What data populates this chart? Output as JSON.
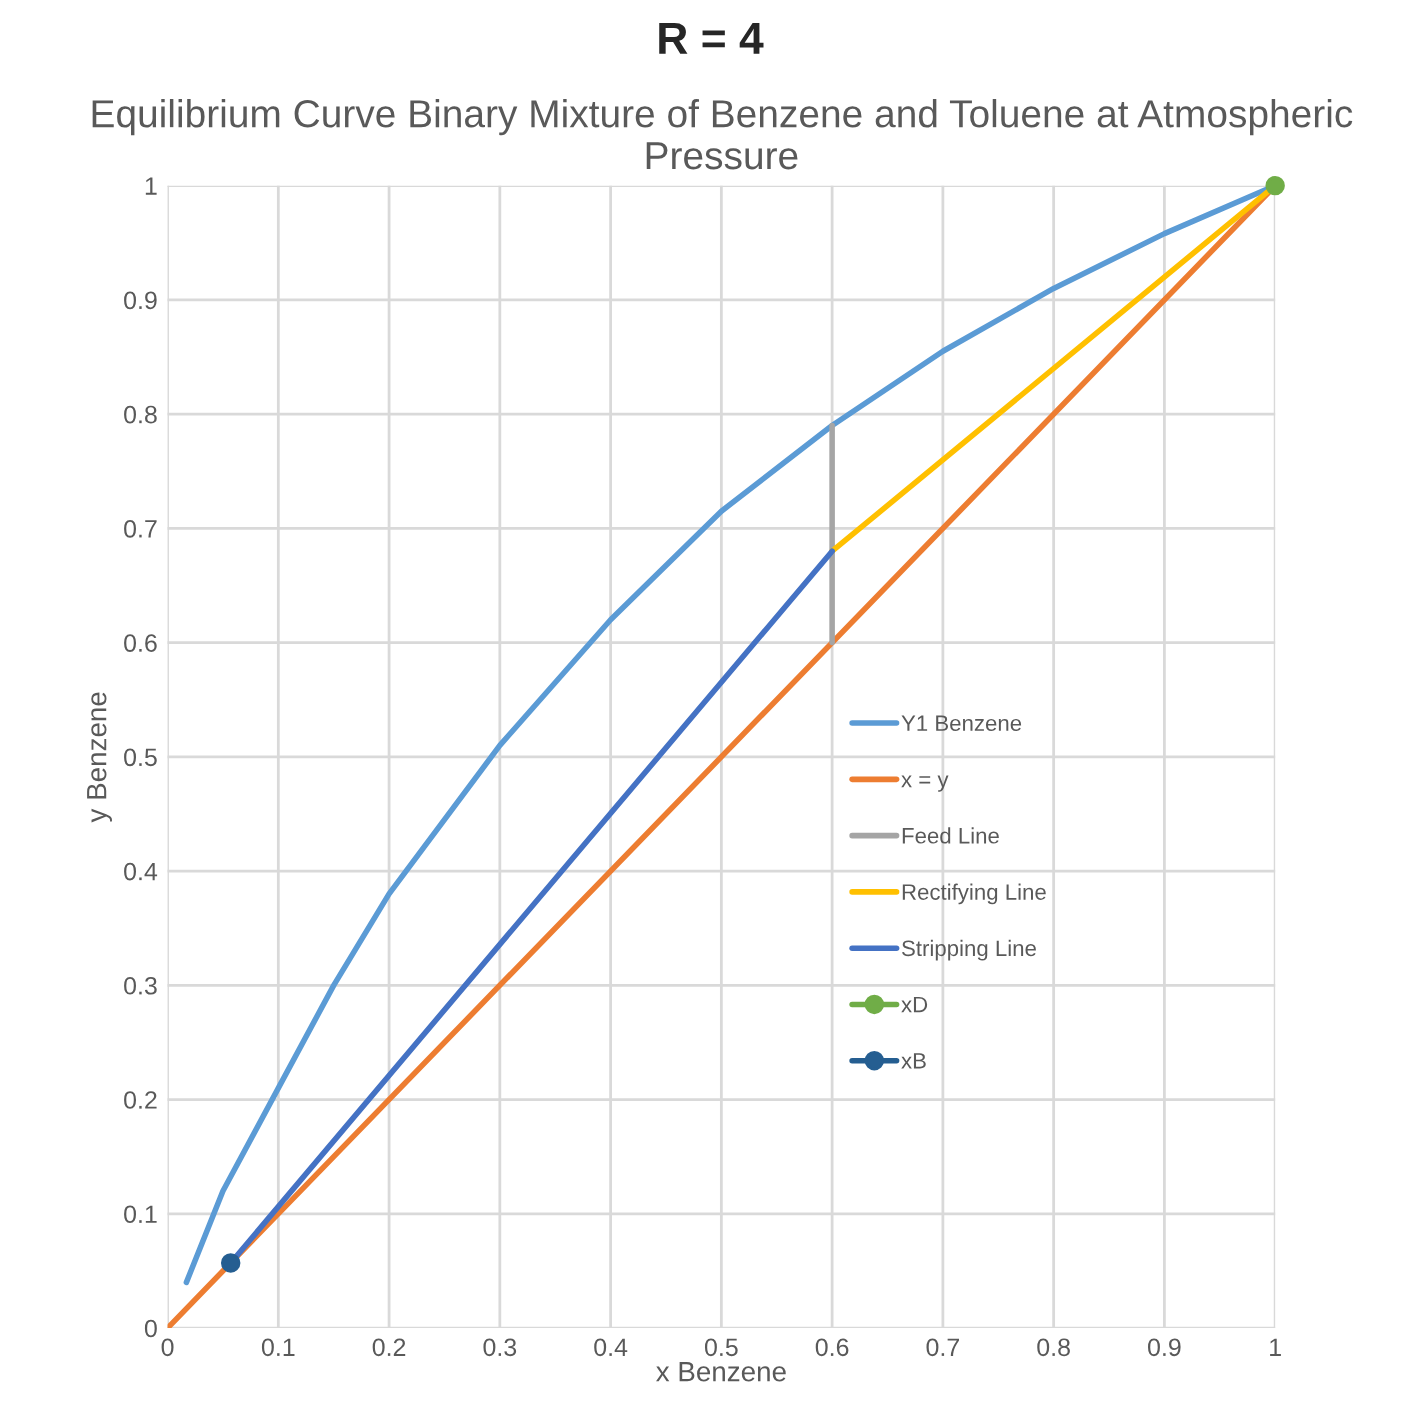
{
  "chart_data": {
    "type": "line",
    "title": "Equilibrium Curve Binary Mixture of Benzene and Toluene at Atmospheric Pressure",
    "xlabel": "x Benzene",
    "ylabel": "y Benzene",
    "annotations": [
      "R = 4"
    ],
    "xlim": [
      0,
      1
    ],
    "ylim": [
      0,
      1
    ],
    "xticks": [
      0,
      0.1,
      0.2,
      0.3,
      0.4,
      0.5,
      0.6,
      0.7,
      0.8,
      0.9,
      1
    ],
    "yticks": [
      0,
      0.1,
      0.2,
      0.3,
      0.4,
      0.5,
      0.6,
      0.7,
      0.8,
      0.9,
      1
    ],
    "grid": true,
    "legend": "right",
    "series": [
      {
        "name": "Y1 Benzene",
        "color": "#5b9bd5",
        "x": [
          0.017,
          0.05,
          0.1,
          0.15,
          0.2,
          0.3,
          0.4,
          0.5,
          0.6,
          0.7,
          0.8,
          0.9,
          1
        ],
        "values": [
          0.04,
          0.12,
          0.21,
          0.3,
          0.38,
          0.51,
          0.62,
          0.715,
          0.79,
          0.855,
          0.91,
          0.958,
          1
        ]
      },
      {
        "name": "x = y",
        "color": "#ed7d31",
        "x": [
          0,
          1
        ],
        "values": [
          0,
          1
        ]
      },
      {
        "name": "Feed Line",
        "color": "#a5a5a5",
        "x": [
          0.6,
          0.6
        ],
        "values": [
          0.6,
          0.79
        ]
      },
      {
        "name": "Rectifying Line",
        "color": "#ffc000",
        "x": [
          0.6,
          1
        ],
        "values": [
          0.68,
          1
        ]
      },
      {
        "name": "Stripping Line",
        "color": "#4472c4",
        "x": [
          0.057,
          0.6
        ],
        "values": [
          0.057,
          0.68
        ]
      },
      {
        "name": "xD",
        "color": "#70ad47",
        "marker": "circle",
        "x": [
          1
        ],
        "values": [
          1
        ]
      },
      {
        "name": "xB",
        "color": "#255e91",
        "marker": "circle",
        "x": [
          0.057
        ],
        "values": [
          0.057
        ]
      }
    ]
  }
}
